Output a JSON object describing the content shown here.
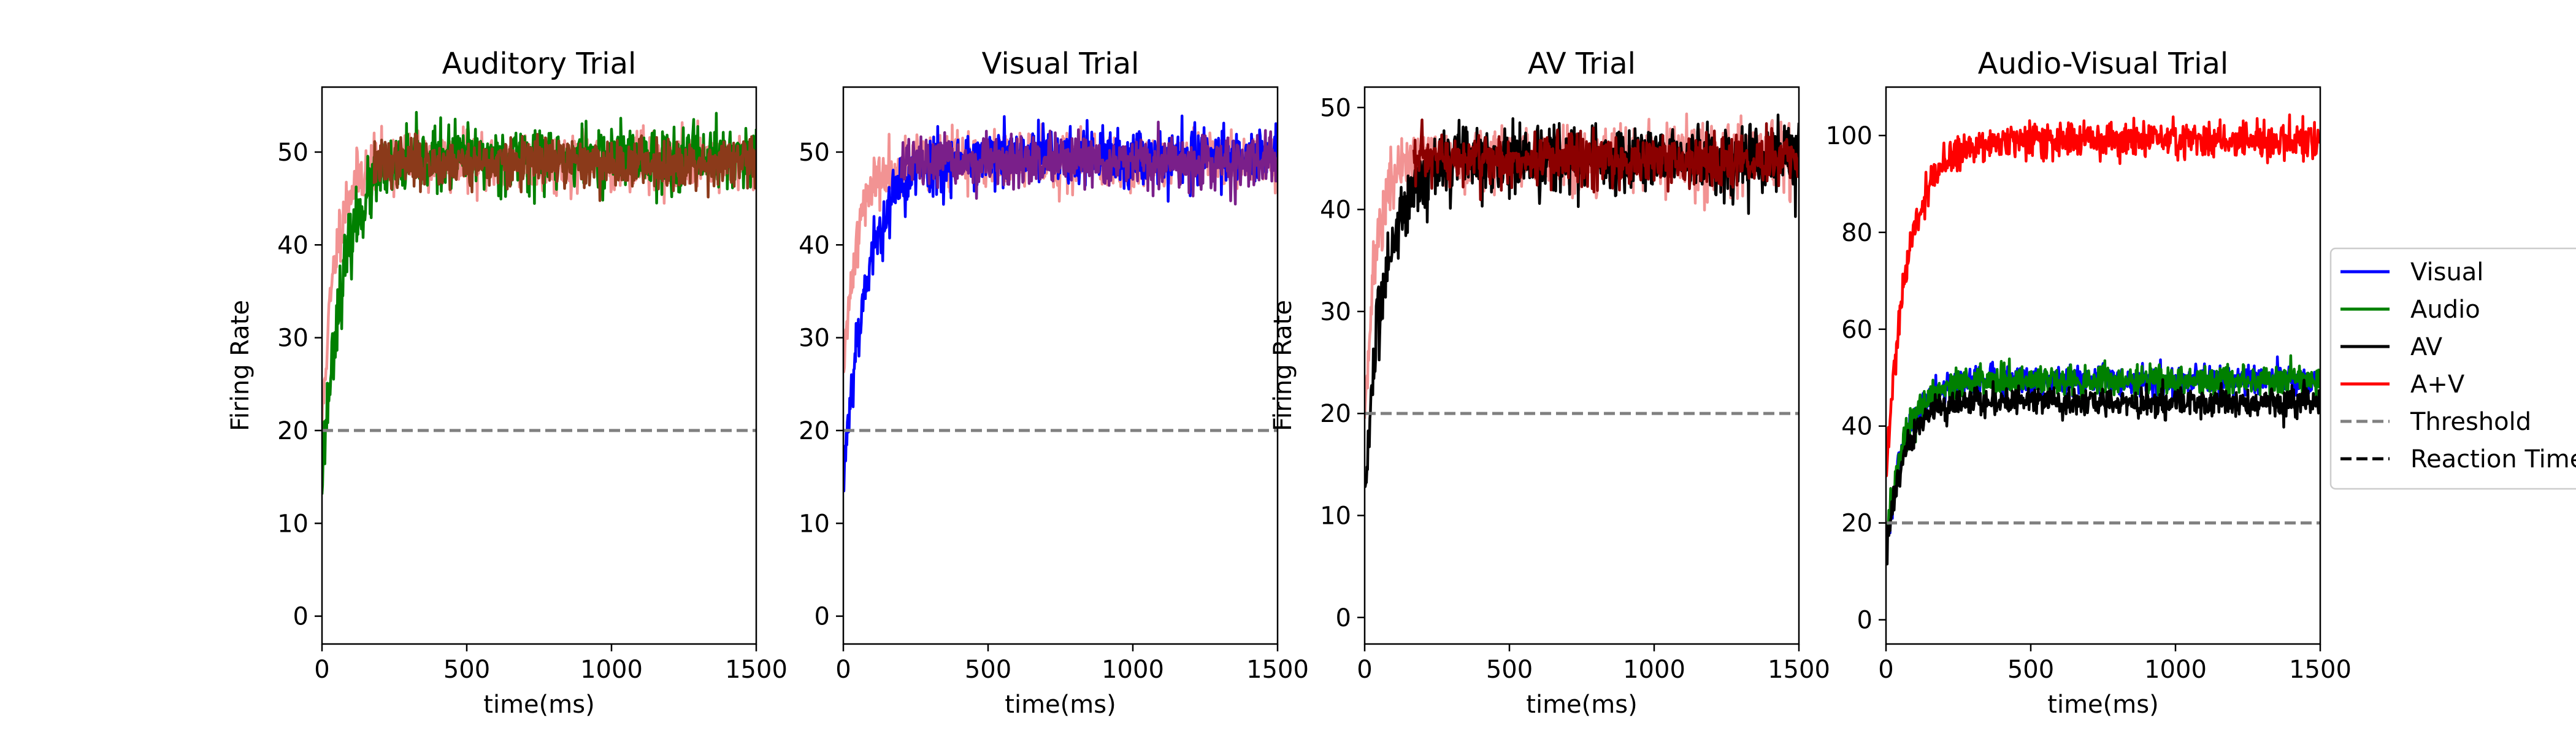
{
  "chart_data": [
    {
      "type": "line",
      "title": "Auditory Trial",
      "xlabel": "time(ms)",
      "ylabel": "Firing Rate",
      "xlim": [
        0,
        1500
      ],
      "ylim": [
        -3,
        57
      ],
      "xticks": [
        0,
        500,
        1000,
        1500
      ],
      "yticks": [
        0,
        10,
        20,
        30,
        40,
        50
      ],
      "threshold": 20,
      "series": [
        {
          "name": "A+V",
          "color": "#f08080",
          "alpha": 0.85,
          "start": 20,
          "plateau": 49,
          "tau": 45,
          "noise": 1.5,
          "seed": 11
        },
        {
          "name": "Audio",
          "color": "#008000",
          "alpha": 1,
          "start": 15,
          "plateau": 49.5,
          "tau": 75,
          "noise": 1.7,
          "seed": 23
        },
        {
          "color": "#8b3a1a",
          "alpha": 1,
          "start": 48,
          "plateau": 48.8,
          "tau": 1,
          "noise": 1.3,
          "seed": 37,
          "t0": 180
        }
      ]
    },
    {
      "type": "line",
      "title": "Visual Trial",
      "xlabel": "time(ms)",
      "ylabel": "",
      "xlim": [
        0,
        1500
      ],
      "ylim": [
        -3,
        57
      ],
      "xticks": [
        0,
        500,
        1000,
        1500
      ],
      "yticks": [
        0,
        10,
        20,
        30,
        40,
        50
      ],
      "threshold": 20,
      "series": [
        {
          "name": "A+V",
          "color": "#f08080",
          "alpha": 0.85,
          "start": 25,
          "plateau": 49,
          "tau": 45,
          "noise": 1.5,
          "seed": 41
        },
        {
          "name": "Visual",
          "color": "#0000ff",
          "alpha": 1,
          "start": 15,
          "plateau": 49.5,
          "tau": 85,
          "noise": 1.6,
          "seed": 53
        },
        {
          "color": "#7a1f8a",
          "alpha": 1,
          "start": 48.5,
          "plateau": 48.8,
          "tau": 1,
          "noise": 1.3,
          "seed": 67,
          "t0": 200
        }
      ]
    },
    {
      "type": "line",
      "title": "AV Trial",
      "xlabel": "time(ms)",
      "ylabel": "Firing Rate",
      "xlim": [
        0,
        1500
      ],
      "ylim": [
        -2.6,
        52
      ],
      "xticks": [
        0,
        500,
        1000,
        1500
      ],
      "yticks": [
        0,
        10,
        20,
        30,
        40,
        50
      ],
      "threshold": 20,
      "series": [
        {
          "name": "A+V",
          "color": "#f08080",
          "alpha": 0.85,
          "start": 20,
          "plateau": 45,
          "tau": 40,
          "noise": 1.6,
          "seed": 71
        },
        {
          "name": "AV",
          "color": "#000000",
          "alpha": 1,
          "start": 12,
          "plateau": 45,
          "tau": 70,
          "noise": 1.7,
          "seed": 83
        },
        {
          "color": "#8b0000",
          "alpha": 1,
          "start": 44,
          "plateau": 44.8,
          "tau": 1,
          "noise": 1.3,
          "seed": 97,
          "t0": 170
        }
      ]
    },
    {
      "type": "line",
      "title": "Audio-Visual Trial",
      "xlabel": "time(ms)",
      "ylabel": "",
      "xlim": [
        0,
        1500
      ],
      "ylim": [
        -5,
        110
      ],
      "xticks": [
        0,
        500,
        1000,
        1500
      ],
      "yticks": [
        0,
        20,
        40,
        60,
        80,
        100
      ],
      "threshold": 20,
      "series": [
        {
          "name": "Visual",
          "color": "#0000ff",
          "alpha": 1,
          "start": 14,
          "plateau": 49.5,
          "tau": 65,
          "noise": 1.5,
          "seed": 101
        },
        {
          "name": "Audio",
          "color": "#008000",
          "alpha": 1,
          "start": 15,
          "plateau": 49.5,
          "tau": 65,
          "noise": 1.6,
          "seed": 113
        },
        {
          "name": "AV",
          "color": "#000000",
          "alpha": 1,
          "start": 13,
          "plateau": 45,
          "tau": 60,
          "noise": 1.5,
          "seed": 127
        },
        {
          "name": "A+V",
          "color": "#ff0000",
          "alpha": 1,
          "start": 30,
          "plateau": 99,
          "tau": 75,
          "noise": 1.8,
          "seed": 131
        }
      ]
    }
  ],
  "legend": {
    "placement": "right",
    "items": [
      {
        "label": "Visual",
        "color": "#0000ff",
        "dashed": false
      },
      {
        "label": "Audio",
        "color": "#008000",
        "dashed": false
      },
      {
        "label": "AV",
        "color": "#000000",
        "dashed": false
      },
      {
        "label": "A+V",
        "color": "#ff0000",
        "dashed": false
      },
      {
        "label": "Threshold",
        "color": "#808080",
        "dashed": true
      },
      {
        "label": "Reaction Time",
        "color": "#000000",
        "dashed": true
      }
    ]
  },
  "threshold_color": "#808080"
}
